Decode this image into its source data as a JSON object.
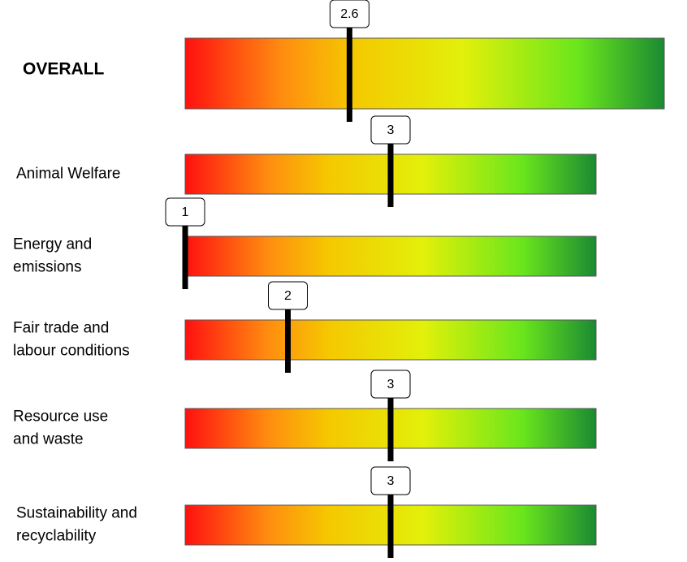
{
  "chart_data": {
    "type": "rating-bars",
    "xlim": [
      1,
      5
    ],
    "overall": {
      "label": "OVERALL",
      "value": 2.6
    },
    "items": [
      {
        "label_lines": [
          "Animal Welfare"
        ],
        "value": 3
      },
      {
        "label_lines": [
          "Energy and",
          "emissions"
        ],
        "value": 1
      },
      {
        "label_lines": [
          "Fair trade and",
          "labour conditions"
        ],
        "value": 2
      },
      {
        "label_lines": [
          "Resource use",
          "and waste"
        ],
        "value": 3
      },
      {
        "label_lines": [
          "Sustainability and",
          "recyclability"
        ],
        "value": 3
      }
    ]
  }
}
